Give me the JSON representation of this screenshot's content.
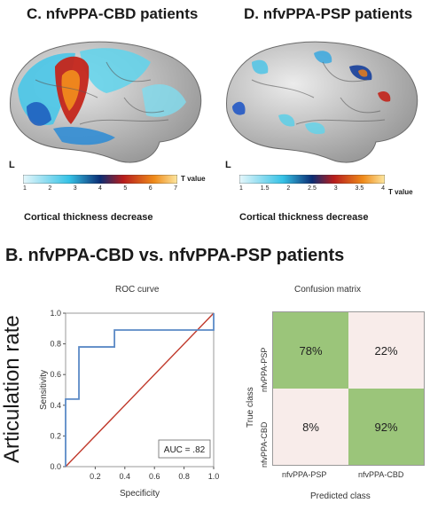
{
  "panel_c": {
    "title": "C. nfvPPA-CBD patients",
    "hemisphere": "L",
    "colorbar_ticks": [
      "1",
      "2",
      "3",
      "4",
      "5",
      "6",
      "7"
    ],
    "colorbar_unit": "T value",
    "caption": "Cortical thickness decrease"
  },
  "panel_d": {
    "title": "D. nfvPPA-PSP patients",
    "hemisphere": "L",
    "colorbar_ticks": [
      "1",
      "1.5",
      "2",
      "2.5",
      "3",
      "3.5",
      "4"
    ],
    "colorbar_unit": "T value",
    "caption": "Cortical thickness decrease"
  },
  "panel_b": {
    "title": "B. nfvPPA-CBD vs. nfvPPA-PSP patients",
    "side_label": "Articulation rate"
  },
  "chart_data": [
    {
      "type": "line",
      "title": "ROC curve",
      "xlabel": "Specificity",
      "ylabel": "Sensitivity",
      "xlim": [
        0,
        1
      ],
      "ylim": [
        0,
        1
      ],
      "x_ticks": [
        "0.2",
        "0.4",
        "0.6",
        "0.8",
        "1.0"
      ],
      "y_ticks": [
        "0.0",
        "0.2",
        "0.4",
        "0.6",
        "0.8",
        "1.0"
      ],
      "series": [
        {
          "values": [
            [
              0,
              0
            ],
            [
              0,
              0.44
            ],
            [
              0.09,
              0.44
            ],
            [
              0.09,
              0.78
            ],
            [
              0.33,
              0.78
            ],
            [
              0.33,
              0.89
            ],
            [
              1,
              0.89
            ],
            [
              1,
              1
            ]
          ]
        },
        {
          "values": [
            [
              0,
              0
            ],
            [
              1,
              1
            ]
          ]
        }
      ],
      "annotation": "AUC = .82",
      "colors": {
        "roc": "#5b8ac6",
        "chance": "#c0392b"
      }
    },
    {
      "type": "heatmap",
      "title": "Confusion matrix",
      "xlabel": "Predicted class",
      "ylabel": "True class",
      "x_categories": [
        "nfvPPA-PSP",
        "nfvPPA-CBD"
      ],
      "y_categories": [
        "nfvPPA-PSP",
        "nfvPPA-CBD"
      ],
      "values": [
        [
          "78%",
          "22%"
        ],
        [
          "8%",
          "92%"
        ]
      ],
      "colors": {
        "high": "#9bc57a",
        "low": "#f8ecea"
      }
    }
  ]
}
